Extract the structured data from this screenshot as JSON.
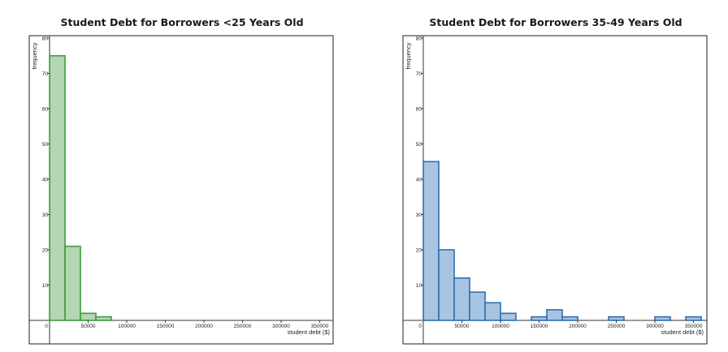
{
  "charts": [
    {
      "title": "Student Debt for Borrowers <25 Years Old",
      "chart_data": {
        "type": "bar",
        "title": "Student Debt for Borrowers <25 Years Old",
        "xlabel": "student debt ($)",
        "ylabel": "frequency",
        "bin_width": 20000,
        "xlim": [
          0,
          360000
        ],
        "ylim": [
          0,
          80
        ],
        "x_ticks": [
          "0",
          "50000",
          "100000",
          "150000",
          "200000",
          "250000",
          "300000",
          "350000"
        ],
        "y_ticks": [
          "10",
          "20",
          "30",
          "40",
          "50",
          "60",
          "70",
          "80"
        ],
        "bins": [
          {
            "start": 0,
            "end": 20000,
            "count": 75
          },
          {
            "start": 20000,
            "end": 40000,
            "count": 21
          },
          {
            "start": 40000,
            "end": 60000,
            "count": 2
          },
          {
            "start": 60000,
            "end": 80000,
            "count": 1
          }
        ],
        "fill": "#b3d6b3",
        "stroke": "#3f9b3f",
        "grid": false
      }
    },
    {
      "title": "Student Debt for Borrowers 35-49 Years Old",
      "chart_data": {
        "type": "bar",
        "title": "Student Debt for Borrowers 35-49 Years Old",
        "xlabel": "student debt ($)",
        "ylabel": "frequency",
        "bin_width": 20000,
        "xlim": [
          0,
          360000
        ],
        "ylim": [
          0,
          80
        ],
        "x_ticks": [
          "0",
          "50000",
          "100000",
          "150000",
          "200000",
          "250000",
          "300000",
          "350000"
        ],
        "y_ticks": [
          "10",
          "20",
          "30",
          "40",
          "50",
          "60",
          "70",
          "80"
        ],
        "bins": [
          {
            "start": 0,
            "end": 20000,
            "count": 45
          },
          {
            "start": 20000,
            "end": 40000,
            "count": 20
          },
          {
            "start": 40000,
            "end": 60000,
            "count": 12
          },
          {
            "start": 60000,
            "end": 80000,
            "count": 8
          },
          {
            "start": 80000,
            "end": 100000,
            "count": 5
          },
          {
            "start": 100000,
            "end": 120000,
            "count": 2
          },
          {
            "start": 140000,
            "end": 160000,
            "count": 1
          },
          {
            "start": 160000,
            "end": 180000,
            "count": 3
          },
          {
            "start": 180000,
            "end": 200000,
            "count": 1
          },
          {
            "start": 240000,
            "end": 260000,
            "count": 1
          },
          {
            "start": 300000,
            "end": 320000,
            "count": 1
          },
          {
            "start": 340000,
            "end": 360000,
            "count": 1
          }
        ],
        "fill": "#a7c4e3",
        "stroke": "#2f6faf",
        "grid": false
      }
    }
  ]
}
